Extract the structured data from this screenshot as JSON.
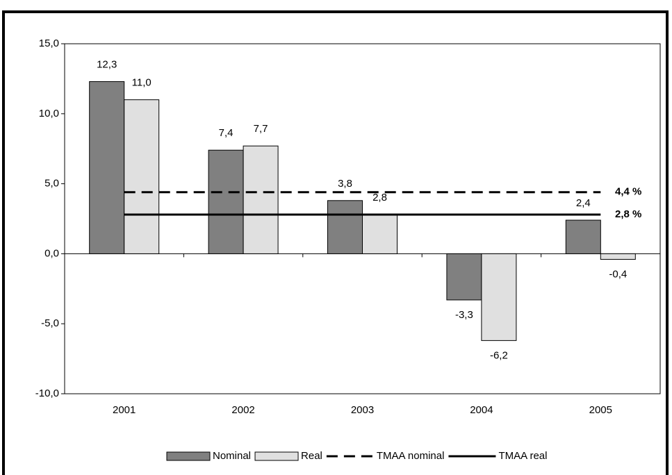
{
  "chart_data": {
    "type": "bar",
    "categories": [
      "2001",
      "2002",
      "2003",
      "2004",
      "2005"
    ],
    "series": [
      {
        "name": "Nominal",
        "color": "#808080",
        "values": [
          12.3,
          7.4,
          3.8,
          -3.3,
          2.4
        ],
        "value_labels": [
          "12,3",
          "7,4",
          "3,8",
          "-3,3",
          "2,4"
        ]
      },
      {
        "name": "Real",
        "color": "#e0e0e0",
        "values": [
          11.0,
          7.7,
          2.8,
          -6.2,
          -0.4
        ],
        "value_labels": [
          "11,0",
          "7,7",
          "2,8",
          "-6,2",
          "-0,4"
        ]
      },
      {
        "name": "TMAA nominal",
        "type": "line",
        "dash": true,
        "color": "#000000",
        "values": [
          4.4,
          4.4,
          4.4,
          4.4,
          4.4
        ],
        "end_label": "4,4 %"
      },
      {
        "name": "TMAA real",
        "type": "line",
        "dash": false,
        "color": "#000000",
        "values": [
          2.8,
          2.8,
          2.8,
          2.8,
          2.8
        ],
        "end_label": "2,8 %"
      }
    ],
    "ylim": [
      -10,
      15
    ],
    "yticks": [
      {
        "value": -10,
        "label": "-10,0"
      },
      {
        "value": -5,
        "label": "-5,0"
      },
      {
        "value": 0,
        "label": "0,0"
      },
      {
        "value": 5,
        "label": "5,0"
      },
      {
        "value": 10,
        "label": "10,0"
      },
      {
        "value": 15,
        "label": "15,0"
      }
    ],
    "grid": false,
    "legend": "bottom"
  }
}
